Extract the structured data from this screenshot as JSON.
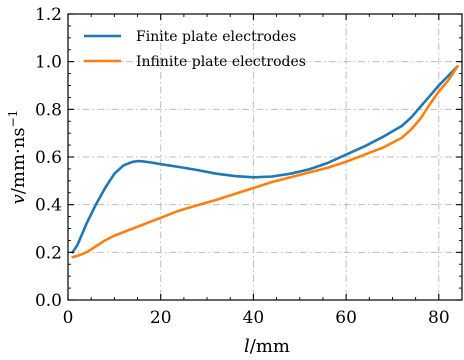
{
  "chart_data": {
    "type": "line",
    "xlabel_main": "l",
    "xlabel_unit": "/mm",
    "ylabel_main": "v",
    "ylabel_unit": "/mm·ns",
    "ylabel_exp": "−1",
    "xlim": [
      0,
      85
    ],
    "ylim": [
      0.0,
      1.2
    ],
    "xticks": [
      0,
      20,
      40,
      60,
      80
    ],
    "yticks": [
      0.0,
      0.2,
      0.4,
      0.6,
      0.8,
      1.0,
      1.2
    ],
    "xtick_labels": [
      "0",
      "20",
      "40",
      "60",
      "80"
    ],
    "ytick_labels": [
      "0.0",
      "0.2",
      "0.4",
      "0.6",
      "0.8",
      "1.0",
      "1.2"
    ],
    "grid": true,
    "legend_position": "top-left",
    "series": [
      {
        "name": "Finite plate electrodes",
        "color": "#1f77b4",
        "x": [
          1,
          2,
          4,
          6,
          8,
          10,
          12,
          14,
          15,
          16,
          18,
          20,
          24,
          28,
          32,
          36,
          40,
          44,
          48,
          52,
          56,
          60,
          64,
          68,
          72,
          74,
          76,
          78,
          80,
          82,
          84
        ],
        "y": [
          0.2,
          0.23,
          0.32,
          0.4,
          0.47,
          0.53,
          0.565,
          0.58,
          0.583,
          0.582,
          0.577,
          0.57,
          0.558,
          0.545,
          0.53,
          0.52,
          0.515,
          0.518,
          0.53,
          0.548,
          0.575,
          0.61,
          0.645,
          0.685,
          0.73,
          0.765,
          0.81,
          0.855,
          0.9,
          0.94,
          0.98
        ]
      },
      {
        "name": "Infinite plate electrodes",
        "color": "#ff7f0e",
        "x": [
          1,
          2,
          4,
          6,
          8,
          10,
          12,
          14,
          16,
          18,
          20,
          24,
          28,
          32,
          36,
          40,
          44,
          48,
          52,
          56,
          60,
          64,
          68,
          72,
          74,
          76,
          78,
          80,
          82,
          84
        ],
        "y": [
          0.18,
          0.185,
          0.2,
          0.225,
          0.25,
          0.27,
          0.285,
          0.3,
          0.315,
          0.33,
          0.345,
          0.375,
          0.398,
          0.42,
          0.445,
          0.47,
          0.495,
          0.515,
          0.535,
          0.555,
          0.58,
          0.61,
          0.64,
          0.68,
          0.715,
          0.76,
          0.82,
          0.875,
          0.92,
          0.98
        ]
      }
    ]
  }
}
